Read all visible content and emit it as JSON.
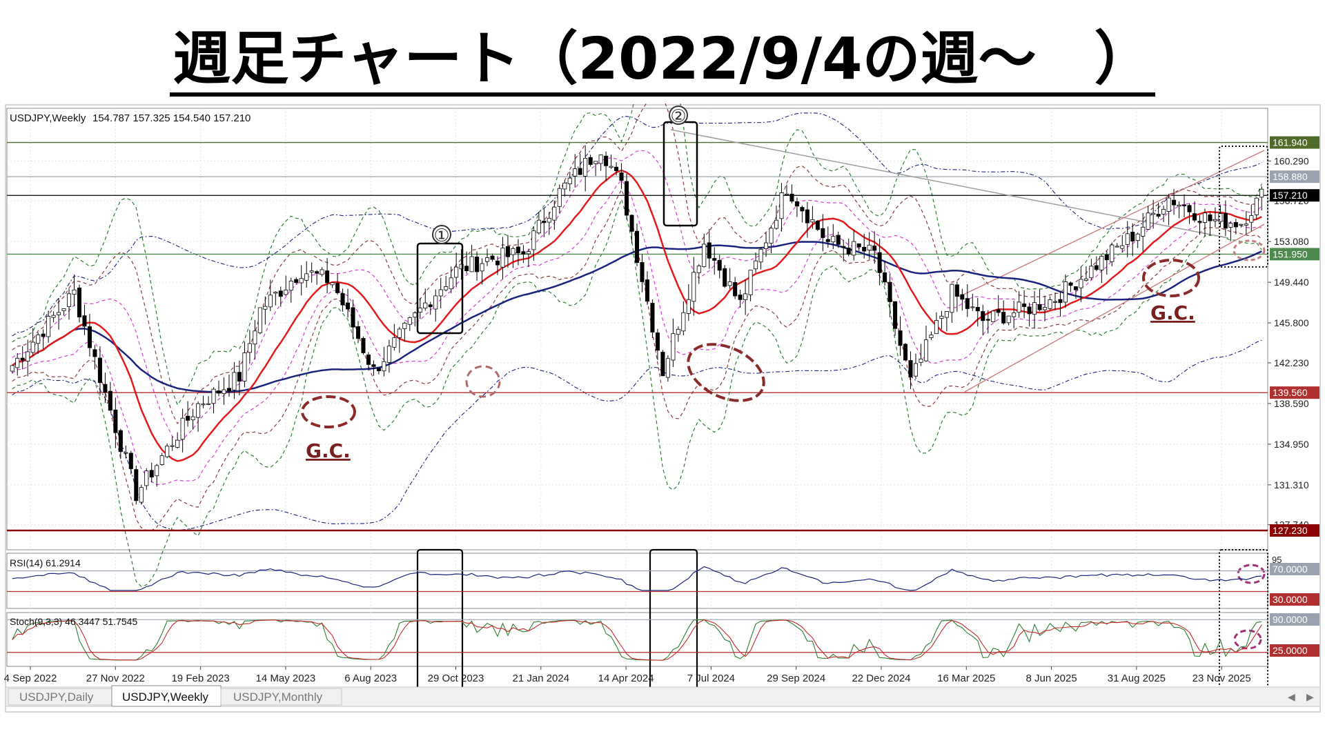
{
  "title": "週足チャート（2022/9/4の週〜　）",
  "header": {
    "symbol_label": "USDJPY,Weekly",
    "ohlc": "154.787 157.325 154.540 157.210"
  },
  "tabs": [
    {
      "label": "USDJPY,Daily",
      "active": false
    },
    {
      "label": "USDJPY,Weekly",
      "active": true
    },
    {
      "label": "USDJPY,Monthly",
      "active": false
    }
  ],
  "price_axis": {
    "ticks": [
      "160.290",
      "156.720",
      "153.080",
      "149.440",
      "145.800",
      "142.230",
      "138.590",
      "134.950",
      "131.310",
      "127.740"
    ],
    "ylim": [
      125.5,
      165.0
    ]
  },
  "horizontal_levels": [
    {
      "value": 161.94,
      "label": "161.940",
      "color": "#4f6b2a"
    },
    {
      "value": 158.88,
      "label": "158.880",
      "color": "#9aa4b0"
    },
    {
      "value": 157.21,
      "label": "157.210",
      "color": "#000000"
    },
    {
      "value": 151.95,
      "label": "151.950",
      "color": "#4e8a4e"
    },
    {
      "value": 139.56,
      "label": "139.560",
      "color": "#b03030"
    },
    {
      "value": 127.23,
      "label": "127.230",
      "color": "#8b0000"
    }
  ],
  "x_axis_labels": [
    "4 Sep 2022",
    "27 Nov 2022",
    "19 Feb 2023",
    "14 May 2023",
    "6 Aug 2023",
    "29 Oct 2023",
    "21 Jan 2024",
    "14 Apr 2024",
    "7 Jul 2024",
    "29 Sep 2024",
    "22 Dec 2024",
    "16 Mar 2025",
    "8 Jun 2025",
    "31 Aug 2025",
    "23 Nov 2025"
  ],
  "annotations": {
    "marker_1": "①",
    "marker_2": "②",
    "gc_labels": [
      "G.C.",
      "G.C."
    ]
  },
  "rsi": {
    "label": "RSI(14) 61.2914",
    "levels": [
      "70.0000",
      "30.0000"
    ],
    "top_tick": "95"
  },
  "stoch": {
    "label": "Stoch(9,3,3) 46.3447 51.7545",
    "levels": [
      "90.0000",
      "25.0000"
    ]
  },
  "chart_data": {
    "type": "candlestick",
    "anchors_x": [
      0,
      12,
      24,
      36,
      44,
      48,
      56,
      62,
      70,
      80,
      86,
      92,
      99,
      106,
      114,
      118,
      120,
      126,
      134,
      141,
      150,
      158,
      167,
      174,
      182,
      188,
      196,
      202,
      210,
      218,
      224,
      232,
      238,
      242
    ],
    "anchors_close": [
      142.0,
      148.5,
      130.5,
      138.5,
      141.0,
      147.0,
      150.5,
      149.5,
      141.5,
      147.5,
      150.5,
      151.5,
      152.0,
      157.5,
      161.5,
      158.0,
      154.0,
      141.5,
      153.0,
      147.5,
      158.0,
      153.0,
      152.0,
      140.5,
      148.5,
      146.0,
      147.0,
      148.0,
      151.0,
      154.0,
      157.0,
      155.0,
      154.8,
      157.2
    ],
    "candle_count": 243,
    "colors": {
      "bull": "#ffffff",
      "bear": "#000000",
      "ma13": "#e31a1c",
      "ma52": "#1a237e",
      "bb_sigma1": "#d63dd6",
      "bb_sigma2": "#8b3a3a",
      "bb_sigma3": "#2e7d32",
      "bb_outer": "#1a237e"
    }
  }
}
